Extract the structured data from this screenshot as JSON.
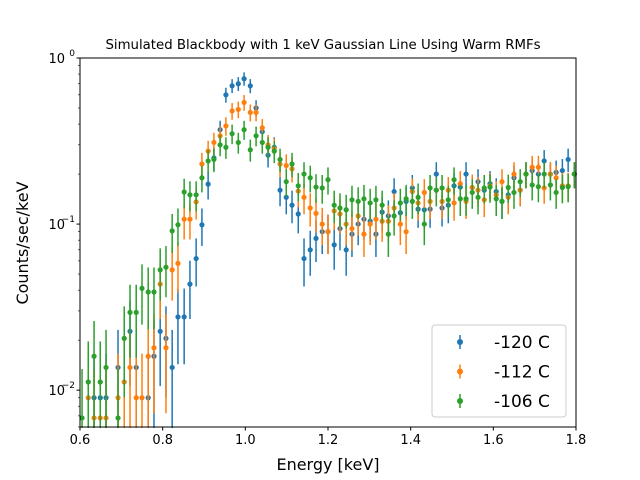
{
  "chart_data": {
    "type": "scatter",
    "title": "Simulated Blackbody with 1 keV Gaussian Line Using Warm RMFs",
    "xlabel": "Energy [keV]",
    "ylabel": "Counts/sec/keV",
    "xlim": [
      0.6,
      1.8
    ],
    "ylim": [
      0.006,
      1.0
    ],
    "yscale": "log",
    "grid": false,
    "legend_position": "lower-right",
    "x_ticks": [
      "0.6",
      "0.8",
      "1.0",
      "1.2",
      "1.4",
      "1.6",
      "1.8"
    ],
    "y_ticks": [
      {
        "base": "10",
        "exp": "0"
      },
      {
        "base": "10",
        "exp": "−1"
      },
      {
        "base": "10",
        "exp": "−2"
      }
    ],
    "x": [
      0.605,
      0.62,
      0.634,
      0.649,
      0.663,
      0.678,
      0.692,
      0.707,
      0.721,
      0.736,
      0.75,
      0.765,
      0.779,
      0.794,
      0.808,
      0.823,
      0.837,
      0.852,
      0.866,
      0.881,
      0.895,
      0.91,
      0.924,
      0.939,
      0.953,
      0.968,
      0.983,
      0.997,
      1.012,
      1.026,
      1.041,
      1.055,
      1.07,
      1.084,
      1.099,
      1.113,
      1.128,
      1.142,
      1.157,
      1.171,
      1.186,
      1.2,
      1.215,
      1.229,
      1.244,
      1.258,
      1.273,
      1.287,
      1.302,
      1.316,
      1.331,
      1.346,
      1.36,
      1.375,
      1.389,
      1.404,
      1.418,
      1.433,
      1.447,
      1.462,
      1.476,
      1.491,
      1.505,
      1.52,
      1.534,
      1.549,
      1.563,
      1.578,
      1.592,
      1.607,
      1.621,
      1.636,
      1.65,
      1.665,
      1.679,
      1.694,
      1.709,
      1.723,
      1.738,
      1.752,
      1.767,
      1.781,
      1.796
    ],
    "series": [
      {
        "name": "-120 C",
        "color": "#1f77b4",
        "values": [
          null,
          null,
          0.009,
          0.009,
          0.009,
          null,
          0.0137,
          null,
          0.0226,
          0.0137,
          null,
          0.009,
          0.016,
          0.0226,
          0.0205,
          0.0137,
          0.0276,
          0.0276,
          0.0435,
          0.062,
          0.099,
          0.174,
          0.25,
          0.37,
          0.6,
          0.68,
          0.7,
          0.75,
          0.68,
          0.5,
          0.36,
          0.26,
          0.29,
          0.16,
          0.145,
          0.13,
          0.115,
          0.062,
          0.07,
          0.082,
          0.09,
          0.09,
          0.075,
          0.094,
          0.07,
          0.087,
          0.1,
          0.107,
          0.104,
          0.087,
          0.118,
          0.112,
          0.157,
          0.117,
          0.137,
          0.165,
          0.123,
          0.122,
          0.123,
          0.2,
          0.125,
          0.13,
          0.17,
          0.167,
          0.2,
          0.166,
          0.18,
          0.16,
          0.175,
          0.157,
          0.137,
          0.15,
          0.19,
          0.16,
          0.2,
          0.21,
          0.2,
          0.24,
          0.2,
          0.205,
          0.21,
          0.245,
          0.2
        ]
      },
      {
        "name": "-112 C",
        "color": "#ff7f0e",
        "values": [
          null,
          0.009,
          0.0068,
          0.0068,
          0.0068,
          null,
          0.009,
          0.0112,
          0.0137,
          0.009,
          0.009,
          0.016,
          0.018,
          0.0435,
          0.018,
          0.053,
          0.058,
          0.107,
          0.107,
          0.136,
          0.23,
          0.275,
          0.31,
          0.34,
          0.39,
          0.48,
          0.49,
          0.54,
          0.47,
          0.47,
          0.38,
          0.3,
          0.285,
          0.23,
          0.225,
          0.215,
          0.158,
          0.145,
          0.125,
          0.116,
          0.1,
          0.09,
          0.12,
          0.115,
          0.1,
          0.094,
          0.112,
          0.087,
          0.1,
          0.107,
          0.104,
          0.104,
          0.125,
          0.1,
          0.09,
          0.157,
          0.134,
          0.155,
          0.137,
          0.16,
          0.137,
          0.16,
          0.134,
          0.175,
          0.137,
          0.166,
          0.16,
          0.14,
          0.17,
          0.15,
          0.18,
          0.145,
          0.2,
          0.16,
          0.2,
          0.22,
          0.22,
          0.165,
          0.2,
          0.19,
          0.17,
          0.17,
          0.2
        ]
      },
      {
        "name": "-106 C",
        "color": "#2ca02c",
        "values": [
          0.0068,
          0.0112,
          0.016,
          0.0112,
          0.0137,
          null,
          0.0068,
          0.0205,
          0.0294,
          0.0294,
          0.041,
          0.039,
          0.039,
          0.053,
          0.055,
          0.091,
          0.099,
          0.156,
          0.15,
          0.15,
          0.19,
          0.24,
          0.245,
          0.3,
          0.29,
          0.35,
          0.31,
          0.37,
          0.28,
          0.34,
          0.31,
          0.29,
          0.275,
          0.245,
          0.18,
          0.23,
          0.17,
          0.2,
          0.19,
          0.167,
          0.165,
          0.185,
          0.13,
          0.125,
          0.122,
          0.14,
          0.137,
          0.142,
          0.134,
          0.14,
          0.13,
          0.087,
          0.112,
          0.134,
          0.142,
          0.137,
          0.145,
          0.1,
          0.165,
          0.16,
          0.165,
          0.14,
          0.185,
          0.142,
          0.142,
          0.155,
          0.145,
          0.165,
          0.167,
          0.142,
          0.137,
          0.166,
          0.155,
          0.18,
          0.2,
          0.172,
          0.168,
          0.2,
          0.172,
          0.155,
          0.166,
          0.168,
          0.2
        ]
      }
    ]
  }
}
